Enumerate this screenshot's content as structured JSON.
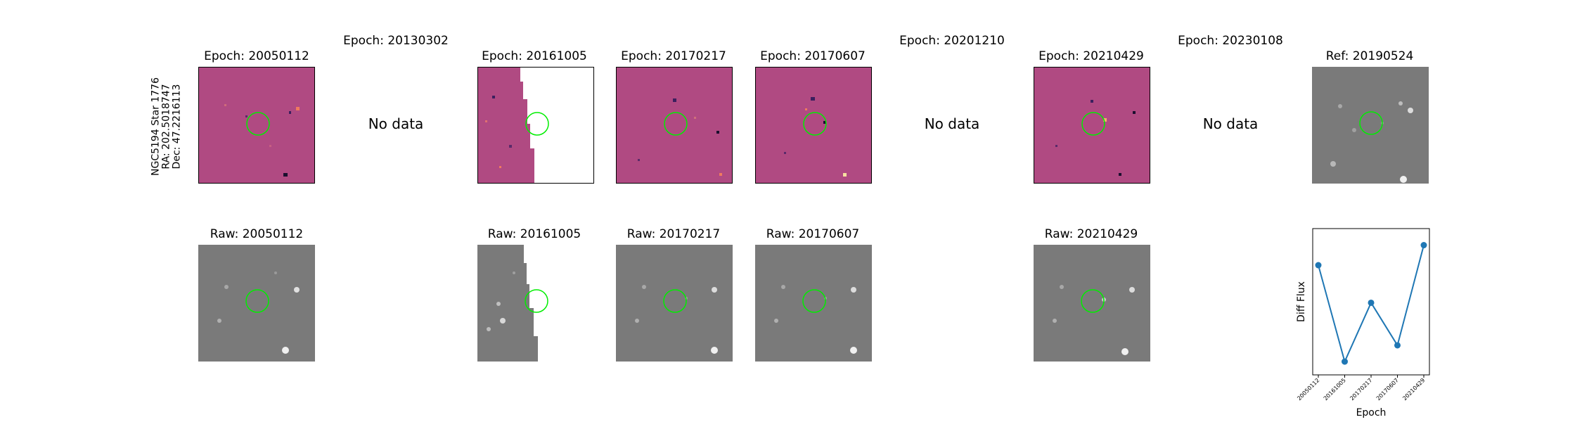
{
  "colors": {
    "circle": "#00ee00",
    "diff_bg": "#b04a82",
    "raw_bg": "#7a7a7a",
    "line": "#1f77b4"
  },
  "row_label": {
    "star": "NGC5194 Star 1776",
    "ra": "RA: 202.5018747",
    "dec": "Dec: 47.2216113"
  },
  "no_data_label": "No data",
  "diff_row": [
    {
      "title": "Epoch: 20050112",
      "has_data": true
    },
    {
      "title": "Epoch: 20130302",
      "has_data": false
    },
    {
      "title": "Epoch: 20161005",
      "has_data": true,
      "partial": true
    },
    {
      "title": "Epoch: 20170217",
      "has_data": true
    },
    {
      "title": "Epoch: 20170607",
      "has_data": true
    },
    {
      "title": "Epoch: 20201210",
      "has_data": false
    },
    {
      "title": "Epoch: 20210429",
      "has_data": true
    },
    {
      "title": "Epoch: 20230108",
      "has_data": false
    },
    {
      "title": "Ref: 20190524",
      "has_data": true,
      "reference": true
    }
  ],
  "raw_row": [
    {
      "title": "Raw: 20050112",
      "column": 0
    },
    {
      "title": "Raw: 20161005",
      "column": 2,
      "partial": true
    },
    {
      "title": "Raw: 20170217",
      "column": 3
    },
    {
      "title": "Raw: 20170607",
      "column": 4
    },
    {
      "title": "Raw: 20210429",
      "column": 6
    }
  ],
  "chart_data": {
    "type": "line",
    "categories": [
      "20050112",
      "20161005",
      "20170217",
      "20170607",
      "20210429"
    ],
    "values": [
      0.82,
      0.05,
      0.52,
      0.18,
      0.98
    ],
    "xlabel": "Epoch",
    "ylabel": "Diff Flux",
    "ylim": [
      0,
      1
    ],
    "marker": "circle",
    "grid": false
  }
}
